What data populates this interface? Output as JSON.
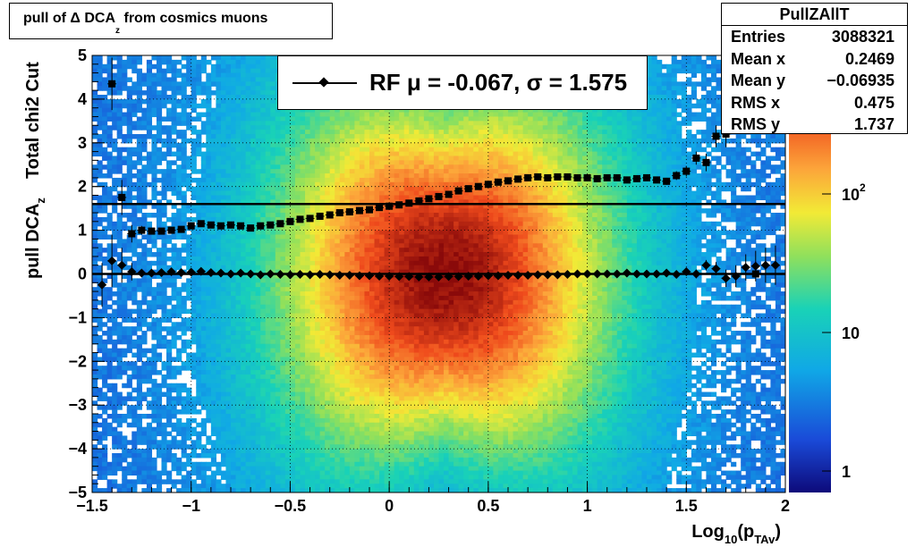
{
  "title": {
    "text": "pull of Δ DCA",
    "sub": "z",
    "suffix": " from cosmics muons"
  },
  "stats": {
    "name": "PullZAllT",
    "rows": [
      {
        "label": "Entries",
        "value": "3088321"
      },
      {
        "label": "Mean x",
        "value": "0.2469"
      },
      {
        "label": "Mean y",
        "value": "−0.06935"
      },
      {
        "label": "RMS x",
        "value": "0.475"
      },
      {
        "label": "RMS y",
        "value": "1.737"
      }
    ]
  },
  "legend": {
    "text": "RF μ = -0.067, σ =   1.575"
  },
  "chart_data": {
    "type": "heatmap",
    "xlabel": {
      "main": "Log",
      "sub1": "10",
      "mid": "(p",
      "sub2": "TAv",
      "end": ")"
    },
    "ylabel": {
      "main": "pull DCA",
      "sub": "z",
      "extra": "Total chi2 Cut"
    },
    "xlim": [
      -1.5,
      2
    ],
    "ylim": [
      -5,
      5
    ],
    "xticks": [
      -1.5,
      -1,
      -0.5,
      0,
      0.5,
      1,
      1.5,
      2
    ],
    "xtick_labels": [
      "−1.5",
      "−1",
      "−0.5",
      "0",
      "0.5",
      "1",
      "1.5",
      "2"
    ],
    "yticks": [
      -5,
      -4,
      -3,
      -2,
      -1,
      0,
      1,
      2,
      3,
      4,
      5
    ],
    "ytick_labels": [
      "−5",
      "−4",
      "−3",
      "−2",
      "−1",
      "0",
      "1",
      "2",
      "3",
      "4",
      "5"
    ],
    "grid": true,
    "colorbar": {
      "scale": "log",
      "range": [
        0.7,
        1000
      ],
      "labels": [
        "1",
        "10",
        "10^2"
      ]
    },
    "horizontal_lines": [
      0,
      1.6
    ],
    "series": [
      {
        "marker": "diamond",
        "x": [
          -1.45,
          -1.4,
          -1.35,
          -1.3,
          -1.25,
          -1.2,
          -1.15,
          -1.1,
          -1.05,
          -1.0,
          -0.95,
          -0.9,
          -0.85,
          -0.8,
          -0.75,
          -0.7,
          -0.65,
          -0.6,
          -0.55,
          -0.5,
          -0.45,
          -0.4,
          -0.35,
          -0.3,
          -0.25,
          -0.2,
          -0.15,
          -0.1,
          -0.05,
          0,
          0.05,
          0.1,
          0.15,
          0.2,
          0.25,
          0.3,
          0.35,
          0.4,
          0.45,
          0.5,
          0.55,
          0.6,
          0.65,
          0.7,
          0.75,
          0.8,
          0.85,
          0.9,
          0.95,
          1.0,
          1.05,
          1.1,
          1.15,
          1.2,
          1.25,
          1.3,
          1.35,
          1.4,
          1.45,
          1.5,
          1.55,
          1.6,
          1.65,
          1.7,
          1.75,
          1.8,
          1.85,
          1.9,
          1.95
        ],
        "y": [
          -0.25,
          0.3,
          0.2,
          0.05,
          0.02,
          0.02,
          0.03,
          0.05,
          0.03,
          0.04,
          0.06,
          0.03,
          0.02,
          0.0,
          0.02,
          0.0,
          -0.02,
          0.0,
          -0.01,
          -0.02,
          -0.01,
          -0.02,
          -0.01,
          -0.02,
          -0.03,
          -0.03,
          -0.04,
          -0.04,
          -0.05,
          -0.05,
          -0.06,
          -0.06,
          -0.07,
          -0.07,
          -0.07,
          -0.06,
          -0.06,
          -0.05,
          -0.05,
          -0.04,
          -0.04,
          -0.03,
          -0.03,
          -0.03,
          -0.02,
          -0.02,
          -0.02,
          -0.01,
          0.0,
          0.0,
          0.0,
          0.0,
          0.0,
          0.02,
          0.0,
          0.0,
          0.0,
          0.02,
          -0.01,
          0.05,
          0.0,
          0.2,
          0.12,
          -0.1,
          -0.05,
          0.15,
          0.18,
          0.2,
          0.2
        ],
        "yerr": [
          0.5,
          0.6,
          0.4,
          0.2,
          0.08,
          0.06,
          0.05,
          0.04,
          0.04,
          0.03,
          0.03,
          0.03,
          0.02,
          0.02,
          0.02,
          0.02,
          0.02,
          0.02,
          0.02,
          0.02,
          0.02,
          0.02,
          0.02,
          0.02,
          0.02,
          0.02,
          0.02,
          0.02,
          0.02,
          0.02,
          0.02,
          0.02,
          0.02,
          0.02,
          0.02,
          0.02,
          0.02,
          0.02,
          0.02,
          0.02,
          0.02,
          0.02,
          0.02,
          0.02,
          0.02,
          0.02,
          0.02,
          0.02,
          0.02,
          0.02,
          0.02,
          0.02,
          0.03,
          0.03,
          0.03,
          0.04,
          0.04,
          0.05,
          0.06,
          0.08,
          0.1,
          0.12,
          0.15,
          0.2,
          0.25,
          0.3,
          0.35,
          0.4,
          0.45
        ]
      },
      {
        "marker": "square",
        "x": [
          -1.4,
          -1.35,
          -1.3,
          -1.25,
          -1.2,
          -1.15,
          -1.1,
          -1.05,
          -1.0,
          -0.95,
          -0.9,
          -0.85,
          -0.8,
          -0.75,
          -0.7,
          -0.65,
          -0.6,
          -0.55,
          -0.5,
          -0.45,
          -0.4,
          -0.35,
          -0.3,
          -0.25,
          -0.2,
          -0.15,
          -0.1,
          -0.05,
          0,
          0.05,
          0.1,
          0.15,
          0.2,
          0.25,
          0.3,
          0.35,
          0.4,
          0.45,
          0.5,
          0.55,
          0.6,
          0.65,
          0.7,
          0.75,
          0.8,
          0.85,
          0.9,
          0.95,
          1.0,
          1.05,
          1.1,
          1.15,
          1.2,
          1.25,
          1.3,
          1.35,
          1.4,
          1.45,
          1.5,
          1.55,
          1.6,
          1.65,
          1.7,
          1.75,
          1.8,
          1.85
        ],
        "y": [
          4.35,
          1.75,
          0.92,
          1.0,
          0.98,
          0.98,
          1.0,
          1.02,
          1.1,
          1.15,
          1.12,
          1.1,
          1.12,
          1.1,
          1.05,
          1.1,
          1.12,
          1.15,
          1.2,
          1.25,
          1.27,
          1.32,
          1.35,
          1.4,
          1.42,
          1.45,
          1.47,
          1.52,
          1.55,
          1.58,
          1.62,
          1.67,
          1.72,
          1.77,
          1.82,
          1.9,
          1.95,
          2.0,
          2.05,
          2.1,
          2.13,
          2.17,
          2.2,
          2.22,
          2.2,
          2.22,
          2.22,
          2.2,
          2.2,
          2.18,
          2.2,
          2.2,
          2.15,
          2.18,
          2.2,
          2.15,
          2.12,
          2.25,
          2.35,
          2.65,
          2.55,
          3.15,
          3.2,
          3.75,
          4.25,
          0
        ],
        "yerr": [
          0.6,
          0.4,
          0.2,
          0.1,
          0.06,
          0.05,
          0.05,
          0.04,
          0.04,
          0.03,
          0.03,
          0.03,
          0.03,
          0.02,
          0.02,
          0.02,
          0.02,
          0.02,
          0.02,
          0.02,
          0.02,
          0.02,
          0.02,
          0.02,
          0.02,
          0.02,
          0.02,
          0.02,
          0.02,
          0.02,
          0.02,
          0.02,
          0.02,
          0.02,
          0.02,
          0.02,
          0.02,
          0.02,
          0.02,
          0.02,
          0.02,
          0.02,
          0.02,
          0.02,
          0.03,
          0.03,
          0.03,
          0.03,
          0.03,
          0.03,
          0.04,
          0.04,
          0.05,
          0.05,
          0.06,
          0.07,
          0.08,
          0.1,
          0.12,
          0.15,
          0.2,
          0.25,
          0.3,
          0.35,
          0.4,
          0
        ]
      }
    ]
  }
}
